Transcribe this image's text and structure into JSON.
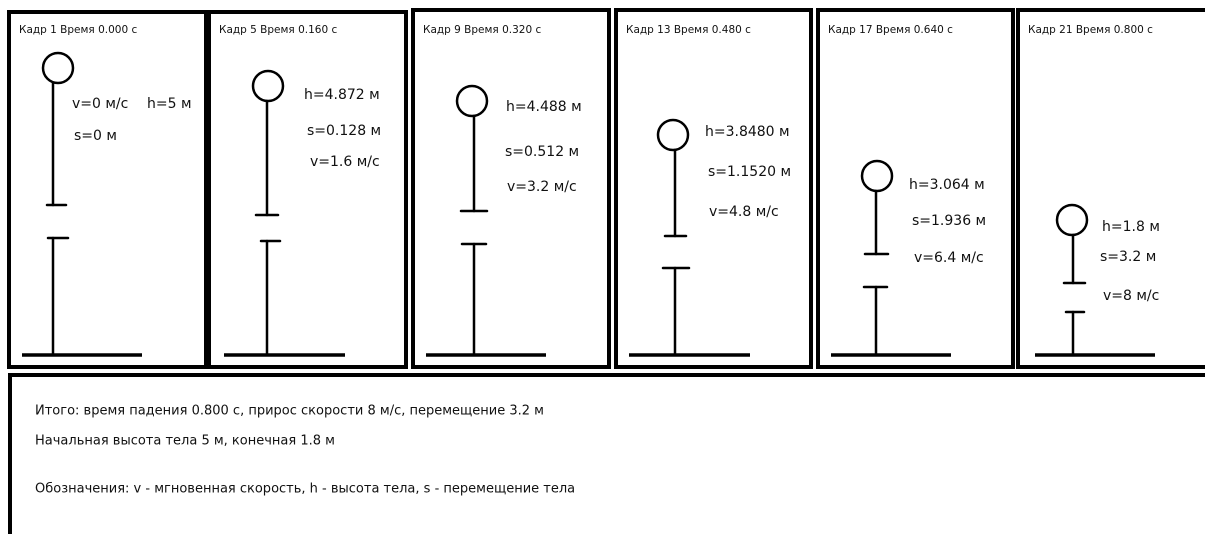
{
  "frames": [
    {
      "header": "Кадр 1  Время 0.000 с",
      "labels": [
        "v=0 м/с",
        "h=5 м",
        "s=0 м"
      ]
    },
    {
      "header": "Кадр 5  Время 0.160 с",
      "labels": [
        "h=4.872 м",
        "s=0.128 м",
        "v=1.6 м/с"
      ]
    },
    {
      "header": "Кадр 9  Время 0.320 с",
      "labels": [
        "h=4.488 м",
        "s=0.512 м",
        "v=3.2 м/с"
      ]
    },
    {
      "header": "Кадр 13  Время 0.480 с",
      "labels": [
        "h=3.8480 м",
        "s=1.1520 м",
        "v=4.8 м/с"
      ]
    },
    {
      "header": "Кадр 17  Время 0.640 с",
      "labels": [
        "h=3.064 м",
        "s=1.936 м",
        "v=6.4 м/с"
      ]
    },
    {
      "header": "Кадр 21  Время 0.800 с",
      "labels": [
        "h=1.8 м",
        "s=3.2 м",
        "v=8 м/с"
      ]
    }
  ],
  "summary": {
    "lines": [
      "Итого: время падения 0.800 с, прирос скорости 8 м/с, перемещение 3.2 м",
      "Начальная высота тела 5 м, конечная 1.8 м",
      "Обозначения: v - мгновенная скорость, h - высота тела, s - перемещение тела"
    ]
  }
}
